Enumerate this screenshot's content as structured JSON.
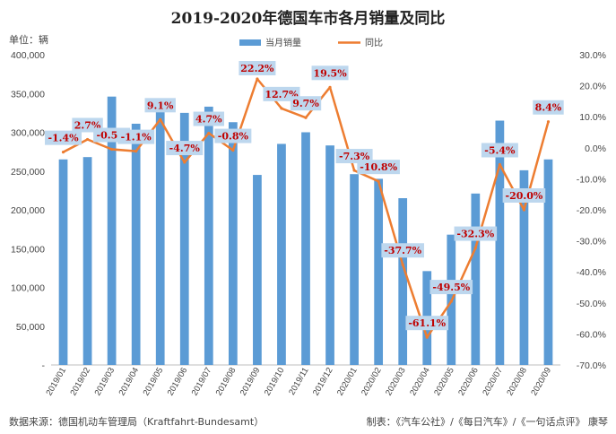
{
  "chart_data": {
    "type": "bar",
    "title": "2019-2020年德国车市各月销量及同比",
    "unit_label": "单位：辆",
    "categories": [
      "2019/01",
      "2019/02",
      "2019/03",
      "2019/04",
      "2019/05",
      "2019/06",
      "2019/07",
      "2019/08",
      "2019/09",
      "2019/10",
      "2019/11",
      "2019/12",
      "2020/01",
      "2020/02",
      "2020/03",
      "2020/04",
      "2020/05",
      "2020/06",
      "2020/07",
      "2020/08",
      "2020/09"
    ],
    "series": [
      {
        "name": "当月销量",
        "type": "bar",
        "axis": "left",
        "color": "#5b9bd5",
        "values": [
          265000,
          268000,
          346000,
          311000,
          326000,
          325000,
          333000,
          313000,
          245000,
          285000,
          300000,
          283000,
          246000,
          240000,
          215000,
          121000,
          168000,
          221000,
          315000,
          251000,
          265000
        ]
      },
      {
        "name": "同比",
        "type": "line",
        "axis": "right",
        "color": "#ed7d31",
        "values": [
          -1.4,
          2.7,
          -0.5,
          -1.1,
          9.1,
          -4.7,
          4.7,
          -0.8,
          22.2,
          12.7,
          9.7,
          19.5,
          -7.3,
          -10.8,
          -37.7,
          -61.1,
          -49.5,
          -32.3,
          -5.4,
          -20.0,
          8.4
        ],
        "labels": [
          "-1.4%",
          "2.7%",
          "-0.5%",
          "-1.1%",
          "9.1%",
          "-4.7%",
          "4.7%",
          "-0.8%",
          "22.2%",
          "12.7%",
          "9.7%",
          "19.5%",
          "-7.3%",
          "-10.8%",
          "-37.7%",
          "-61.1%",
          "-49.5%",
          "-32.3%",
          "-5.4%",
          "-20.0%",
          "8.4%"
        ]
      }
    ],
    "left_axis": {
      "ylim": [
        0,
        400000
      ],
      "ticks": [
        0,
        50000,
        100000,
        150000,
        200000,
        250000,
        300000,
        350000,
        400000
      ],
      "tick_labels": [
        "-",
        "50,000",
        "100,000",
        "150,000",
        "200,000",
        "250,000",
        "300,000",
        "350,000",
        "400,000"
      ]
    },
    "right_axis": {
      "ylim": [
        -70,
        30
      ],
      "ticks": [
        -70,
        -60,
        -50,
        -40,
        -30,
        -20,
        -10,
        0,
        10,
        20,
        30
      ],
      "tick_labels": [
        "-70.0%",
        "-60.0%",
        "-50.0%",
        "-40.0%",
        "-30.0%",
        "-20.0%",
        "-10.0%",
        "0.0%",
        "10.0%",
        "20.0%",
        "30.0%"
      ]
    },
    "grid": false,
    "legend_position": "top",
    "source": "数据来源：德国机动车管理局（Kraftfahrt-Bundesamt）",
    "credit": "制表：《汽车公社》/《每日汽车》/《一句话点评》 康琴",
    "label_color": "#c00000",
    "label_bg": "#bdd7ee"
  }
}
